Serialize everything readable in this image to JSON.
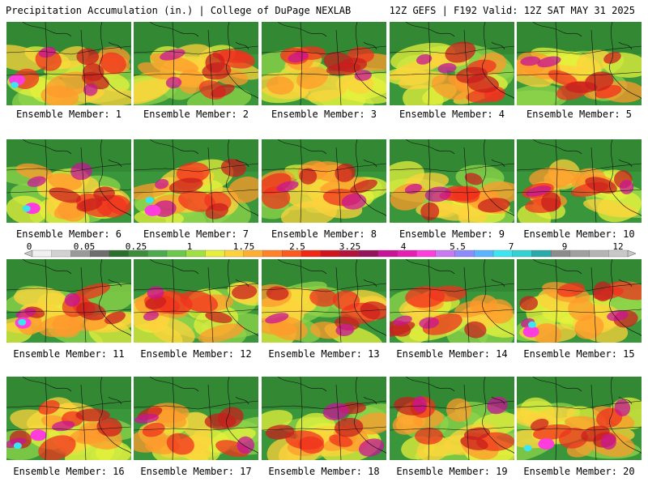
{
  "header": {
    "left": "Precipitation Accumulation (in.) | College of DuPage NEXLAB",
    "right": "12Z GEFS | F192 Valid: 12Z SAT MAY 31 2025"
  },
  "colorscale": {
    "ticks": [
      "0",
      "0.05",
      "0.25",
      "1",
      "1.75",
      "2.5",
      "3.25",
      "4",
      "5.5",
      "7",
      "9",
      "12"
    ],
    "colors": [
      "#f0f0f0",
      "#d2d2d2",
      "#9a9a9a",
      "#6e6e6e",
      "#2c6e2c",
      "#3c8c3c",
      "#4ea84e",
      "#6cc84a",
      "#a0e040",
      "#e6f03c",
      "#ffd23c",
      "#ffae32",
      "#ff8228",
      "#ff5a1e",
      "#f02814",
      "#d2141e",
      "#b4143c",
      "#96145a",
      "#c81496",
      "#e61eb4",
      "#ff3cdc",
      "#c878f0",
      "#8c8cff",
      "#5ab4ff",
      "#3ce6f0",
      "#32d2d2",
      "#28aaaa",
      "#8c8c8c",
      "#a0a0a0",
      "#b4b4b4",
      "#c8c8c8"
    ]
  },
  "panels": [
    {
      "caption": "Ensemble Member: 1"
    },
    {
      "caption": "Ensemble Member: 2"
    },
    {
      "caption": "Ensemble Member: 3"
    },
    {
      "caption": "Ensemble Member: 4"
    },
    {
      "caption": "Ensemble Member: 5"
    },
    {
      "caption": "Ensemble Member: 6"
    },
    {
      "caption": "Ensemble Member: 7"
    },
    {
      "caption": "Ensemble Member: 8"
    },
    {
      "caption": "Ensemble Member: 9"
    },
    {
      "caption": "Ensemble Member: 10"
    },
    {
      "caption": "Ensemble Member: 11"
    },
    {
      "caption": "Ensemble Member: 12"
    },
    {
      "caption": "Ensemble Member: 13"
    },
    {
      "caption": "Ensemble Member: 14"
    },
    {
      "caption": "Ensemble Member: 15"
    },
    {
      "caption": "Ensemble Member: 16"
    },
    {
      "caption": "Ensemble Member: 17"
    },
    {
      "caption": "Ensemble Member: 18"
    },
    {
      "caption": "Ensemble Member: 19"
    },
    {
      "caption": "Ensemble Member: 20"
    }
  ]
}
